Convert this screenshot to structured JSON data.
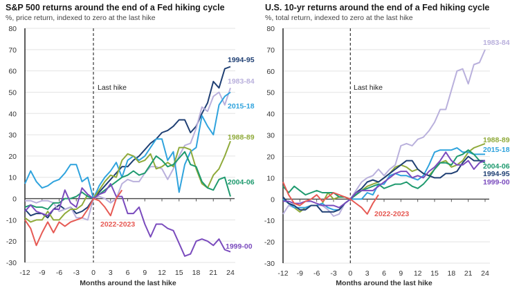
{
  "chart_data": [
    {
      "type": "line",
      "title": "S&P 500 returns around the end of a Fed hiking cycle",
      "subtitle": "%, price return, indexed to zero at the last hike",
      "xlabel": "Months around the last hike",
      "ylabel": "",
      "xlim": [
        -12,
        24
      ],
      "ylim": [
        -30,
        80
      ],
      "xticks": [
        -12,
        -9,
        -6,
        -3,
        0,
        3,
        6,
        9,
        12,
        15,
        18,
        21,
        24
      ],
      "yticks": [
        -30,
        -20,
        -10,
        0,
        10,
        20,
        30,
        40,
        50,
        60,
        70,
        80
      ],
      "grid": true,
      "annotation": "Last hike",
      "annotation_x": 0,
      "series": [
        {
          "name": "1994-95",
          "color": "#1f3f73",
          "start": -12,
          "values": [
            -5,
            -8,
            -7,
            -7,
            -9,
            -5,
            -3,
            -5,
            -4,
            -7,
            -6,
            -4,
            0,
            3,
            6,
            9,
            12,
            15,
            15,
            18,
            20,
            23,
            26,
            28,
            31,
            32,
            34,
            37,
            37,
            31,
            34,
            40,
            45,
            55,
            52,
            61,
            62
          ]
        },
        {
          "name": "1983-84",
          "color": "#b9b0dc",
          "start": -12,
          "values": [
            -1,
            -1,
            -2,
            -1,
            -1,
            -2,
            -6,
            -5,
            -4,
            -9,
            -9,
            -10,
            0,
            1,
            0,
            -2,
            0,
            7,
            9,
            8,
            8,
            12,
            15,
            15,
            14,
            9,
            14,
            20,
            25,
            26,
            33,
            43,
            41,
            48,
            50,
            44,
            52
          ]
        },
        {
          "name": "2015-18",
          "color": "#2fa3dd",
          "start": -12,
          "values": [
            7,
            13,
            8,
            5,
            6,
            8,
            9,
            12,
            16,
            16,
            8,
            10,
            0,
            6,
            10,
            13,
            17,
            10,
            18,
            20,
            18,
            20,
            24,
            28,
            28,
            18,
            22,
            3,
            16,
            22,
            24,
            39,
            34,
            30,
            44,
            48,
            50
          ]
        },
        {
          "name": "1988-89",
          "color": "#8faa3a",
          "start": -12,
          "values": [
            -9,
            -11,
            -10,
            -10,
            -6,
            -10,
            -10,
            -7,
            -5,
            -5,
            -3,
            2,
            0,
            4,
            8,
            11,
            10,
            18,
            21,
            20,
            17,
            18,
            21,
            14,
            15,
            17,
            15,
            24,
            24,
            23,
            14,
            7,
            5,
            11,
            14,
            20,
            27
          ]
        },
        {
          "name": "2004-06",
          "color": "#1e9a6e",
          "start": -12,
          "values": [
            -4,
            -3,
            -4,
            -4,
            -5,
            -2,
            -2,
            0,
            0,
            1,
            3,
            1,
            0,
            2,
            4,
            6,
            8,
            10,
            11,
            13,
            11,
            12,
            16,
            20,
            18,
            15,
            16,
            19,
            22,
            16,
            15,
            8,
            5,
            4,
            9,
            10,
            1
          ]
        },
        {
          "name": "1999-00",
          "color": "#7a4bbd",
          "start": -12,
          "values": [
            -6,
            -3,
            -6,
            -7,
            -8,
            -5,
            -5,
            4,
            -2,
            -4,
            5,
            2,
            0,
            2,
            3,
            7,
            1,
            1,
            -7,
            -7,
            -4,
            -12,
            -18,
            -12,
            -12,
            -14,
            -15,
            -21,
            -27,
            -26,
            -20,
            -19,
            -20,
            -22,
            -19,
            -24,
            -25
          ]
        },
        {
          "name": "2022-2023",
          "color": "#e65a54",
          "start": -12,
          "values": [
            -10,
            -14,
            -22,
            -16,
            -11,
            -16,
            -11,
            -13,
            -11,
            -10,
            -9,
            -5,
            0,
            -1,
            -4,
            -8,
            0,
            4
          ]
        }
      ]
    },
    {
      "type": "line",
      "title": "U.S. 10-yr returns around the end of a Fed hiking cycle",
      "subtitle": "%, total return, indexed to zero at the last hike",
      "xlabel": "Months around the last hike",
      "ylabel": "",
      "xlim": [
        -12,
        24
      ],
      "ylim": [
        -30,
        80
      ],
      "xticks": [
        -12,
        -9,
        -6,
        -3,
        0,
        3,
        6,
        9,
        12,
        15,
        18,
        21,
        24
      ],
      "yticks": [
        -30,
        -20,
        -10,
        0,
        10,
        20,
        30,
        40,
        50,
        60,
        70,
        80
      ],
      "grid": true,
      "annotation": "Last hike",
      "annotation_x": 0,
      "series": [
        {
          "name": "1983-84",
          "color": "#b9b0dc",
          "start": -12,
          "values": [
            -7,
            -3,
            -4,
            -4,
            -4,
            -3,
            -3,
            -3,
            -5,
            -8,
            -7,
            -2,
            0,
            4,
            8,
            10,
            11,
            14,
            11,
            14,
            16,
            25,
            26,
            25,
            28,
            29,
            32,
            36,
            42,
            42,
            51,
            60,
            61,
            54,
            63,
            64,
            70
          ]
        },
        {
          "name": "1988-89",
          "color": "#8faa3a",
          "start": -12,
          "values": [
            0,
            -2,
            -4,
            -6,
            -4,
            -3,
            -3,
            -2,
            3,
            0,
            1,
            1,
            0,
            2,
            4,
            6,
            7,
            8,
            10,
            12,
            15,
            16,
            15,
            13,
            14,
            12,
            11,
            14,
            17,
            18,
            15,
            16,
            18,
            22,
            24,
            25,
            26
          ]
        },
        {
          "name": "2015-18",
          "color": "#2fa3dd",
          "start": -12,
          "values": [
            0,
            -2,
            -4,
            -4,
            -4,
            -3,
            -3,
            -2,
            -4,
            -5,
            -5,
            -2,
            0,
            0,
            0,
            3,
            2,
            7,
            7,
            11,
            12,
            11,
            11,
            10,
            9,
            11,
            16,
            22,
            23,
            23,
            23,
            24,
            22,
            22,
            21,
            21,
            21
          ]
        },
        {
          "name": "2004-06",
          "color": "#1e9a6e",
          "start": -12,
          "values": [
            6,
            3,
            6,
            4,
            2,
            3,
            4,
            3,
            3,
            3,
            1,
            1,
            0,
            2,
            4,
            5,
            6,
            7,
            5,
            6,
            7,
            7,
            8,
            6,
            5,
            7,
            10,
            14,
            17,
            17,
            16,
            20,
            21,
            23,
            21,
            18,
            17
          ]
        },
        {
          "name": "1994-95",
          "color": "#1f3f73",
          "start": -12,
          "values": [
            1,
            -2,
            -3,
            -5,
            -5,
            -3,
            -3,
            -6,
            -6,
            -6,
            -5,
            -2,
            0,
            3,
            5,
            8,
            9,
            8,
            10,
            12,
            14,
            16,
            18,
            18,
            14,
            12,
            11,
            10,
            10,
            12,
            12,
            13,
            17,
            20,
            18,
            18,
            18
          ]
        },
        {
          "name": "1999-00",
          "color": "#7a4bbd",
          "start": -12,
          "values": [
            -1,
            -1,
            -2,
            -2,
            -1,
            -1,
            -2,
            -3,
            -3,
            -3,
            -4,
            -2,
            0,
            3,
            4,
            4,
            4,
            6,
            8,
            10,
            12,
            13,
            13,
            10,
            11,
            10,
            13,
            15,
            18,
            22,
            18,
            16,
            16,
            18,
            14,
            17,
            18
          ]
        },
        {
          "name": "2022-2023",
          "color": "#e65a54",
          "start": -12,
          "values": [
            8,
            2,
            -2,
            -3,
            -1,
            0,
            2,
            -1,
            1,
            3,
            2,
            1,
            0,
            -2,
            -4,
            -7,
            -2,
            2
          ]
        }
      ]
    }
  ]
}
